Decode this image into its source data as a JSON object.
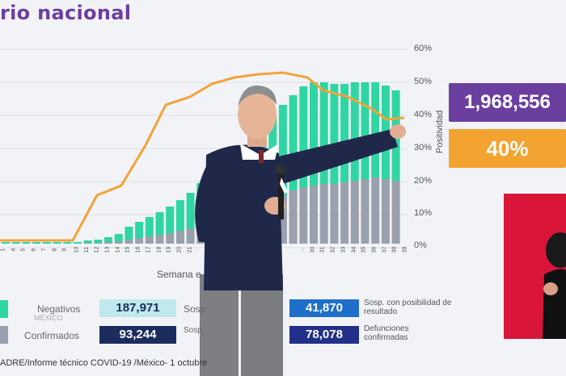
{
  "title": "rio nacional",
  "axis": {
    "right_ticks": [
      "60%",
      "50%",
      "40%",
      "30%",
      "20%",
      "10%",
      "0%"
    ],
    "ylabel": "Positividad",
    "xlabel": "Semana e"
  },
  "badges": {
    "total": "1,968,556",
    "positivity": "40%"
  },
  "legend": {
    "negativos_label": "Negativos",
    "negativos_value": "187,971",
    "confirmados_label": "Confirmados",
    "confirmados_value": "93,244",
    "sosp_label_1": "Sosp",
    "sosp_label_2": "Sosp",
    "sosp_resultado_label": "Sosp. con posibilidad de resultado",
    "sosp_resultado_value": "41,870",
    "defunciones_label": "Defunciones confirmadas",
    "defunciones_value": "78,078",
    "mexico_logo": "MÉXICO"
  },
  "footer": "ADRE/Informe técnico COVID-19 /México- 1 octubre",
  "colors": {
    "teal": "#2fd6a3",
    "gray": "#9aa0ad",
    "navy": "#1c2c5f",
    "blue": "#28a0e0",
    "line": "#f2a33a",
    "purple": "#6b3fa0",
    "orange": "#f3a32f"
  },
  "week_ticks": [
    "1",
    "4",
    "5",
    "6",
    "7",
    "8",
    "9",
    "10",
    "11",
    "12",
    "13",
    "14",
    "15",
    "16",
    "17",
    "18",
    "19",
    "20",
    "21",
    "...",
    "30",
    "31",
    "32",
    "33",
    "34",
    "35",
    "36",
    "37",
    "38",
    "39"
  ]
}
